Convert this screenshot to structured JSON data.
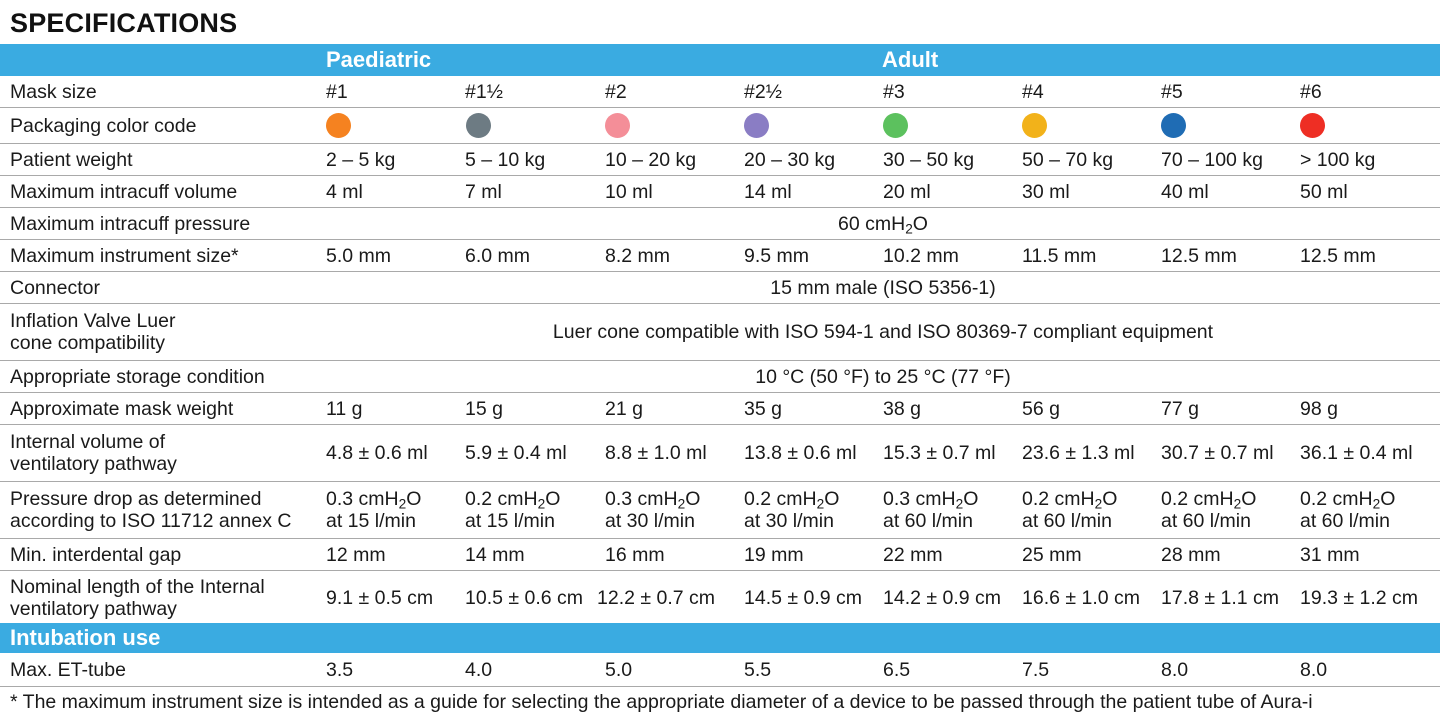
{
  "title": "SPECIFICATIONS",
  "groups": {
    "paediatric": "Paediatric",
    "adult": "Adult"
  },
  "rows": {
    "mask_size": {
      "label": "Mask size",
      "values": [
        "#1",
        "#1½",
        "#2",
        "#2½",
        "#3",
        "#4",
        "#5",
        "#6"
      ]
    },
    "packaging_color": {
      "label": "Packaging color code",
      "colors": [
        "#f58220",
        "#6d7b83",
        "#f48e98",
        "#8a7dc4",
        "#5cc15e",
        "#f2b21a",
        "#1f6cb4",
        "#ee2e24"
      ]
    },
    "patient_weight": {
      "label": "Patient weight",
      "values": [
        "2 – 5 kg",
        "5 – 10 kg",
        "10 – 20 kg",
        "20 – 30 kg",
        "30 – 50 kg",
        "50 – 70 kg",
        "70 – 100 kg",
        "> 100 kg"
      ]
    },
    "max_intracuff_volume": {
      "label": "Maximum intracuff volume",
      "values": [
        "4 ml",
        "7 ml",
        "10 ml",
        "14 ml",
        "20 ml",
        "30 ml",
        "40 ml",
        "50 ml"
      ]
    },
    "max_intracuff_pressure": {
      "label": "Maximum intracuff pressure",
      "value_prefix": "60 cmH",
      "value_sub": "2",
      "value_suffix": "O"
    },
    "max_instrument_size": {
      "label": "Maximum instrument size*",
      "values": [
        "5.0 mm",
        "6.0 mm",
        "8.2 mm",
        "9.5 mm",
        "10.2 mm",
        "11.5 mm",
        "12.5 mm",
        "12.5 mm"
      ]
    },
    "connector": {
      "label": "Connector",
      "value": "15 mm male (ISO 5356-1)"
    },
    "inflation_valve": {
      "label_line1": "Inflation Valve Luer",
      "label_line2": "cone compatibility",
      "value": "Luer cone compatible with ISO 594-1 and ISO 80369-7 compliant equipment"
    },
    "storage": {
      "label": "Appropriate storage condition",
      "value": "10 °C (50 °F) to 25 °C (77 °F)"
    },
    "mask_weight": {
      "label": "Approximate mask weight",
      "values": [
        "11 g",
        "15 g",
        "21 g",
        "35 g",
        "38 g",
        "56 g",
        "77 g",
        "98 g"
      ]
    },
    "internal_volume": {
      "label_line1": "Internal volume of",
      "label_line2": "ventilatory pathway",
      "values": [
        "4.8 ± 0.6 ml",
        "5.9 ± 0.4 ml",
        "8.8 ± 1.0 ml",
        "13.8 ± 0.6 ml",
        "15.3 ± 0.7 ml",
        "23.6 ± 1.3 ml",
        "30.7 ± 0.7 ml",
        "36.1 ± 0.4 ml"
      ]
    },
    "pressure_drop": {
      "label_line1": "Pressure drop as determined",
      "label_line2": "according to ISO 11712 annex C",
      "line1_prefix": [
        "0.3 cmH",
        "0.2 cmH",
        "0.3 cmH",
        "0.2 cmH",
        "0.3 cmH",
        "0.2 cmH",
        "0.2 cmH",
        "0.2 cmH"
      ],
      "line1_sub": "2",
      "line1_suffix": "O",
      "line2": [
        "at 15 l/min",
        "at 15 l/min",
        "at 30 l/min",
        "at 30 l/min",
        "at 60 l/min",
        "at 60 l/min",
        "at 60 l/min",
        "at 60 l/min"
      ]
    },
    "interdental_gap": {
      "label": "Min. interdental gap",
      "values": [
        "12 mm",
        "14 mm",
        "16 mm",
        "19 mm",
        "22 mm",
        "25 mm",
        "28 mm",
        "31 mm"
      ]
    },
    "nominal_length": {
      "label_line1": "Nominal length of the Internal",
      "label_line2": "ventilatory pathway",
      "values": [
        "9.1 ± 0.5 cm",
        "10.5 ± 0.6 cm",
        "12.2 ± 0.7 cm",
        "14.5 ± 0.9 cm",
        "14.2 ± 0.9 cm",
        "16.6 ± 1.0 cm",
        "17.8 ± 1.1 cm",
        "19.3 ± 1.2 cm"
      ]
    }
  },
  "intubation": {
    "heading": "Intubation use",
    "et_tube": {
      "label": "Max. ET-tube",
      "values": [
        "3.5",
        "4.0",
        "5.0",
        "5.5",
        "6.5",
        "7.5",
        "8.0",
        "8.0"
      ]
    }
  },
  "footnote": "* The maximum instrument size is intended as a guide for selecting the appropriate diameter of a device to be passed through the patient tube of Aura-i"
}
